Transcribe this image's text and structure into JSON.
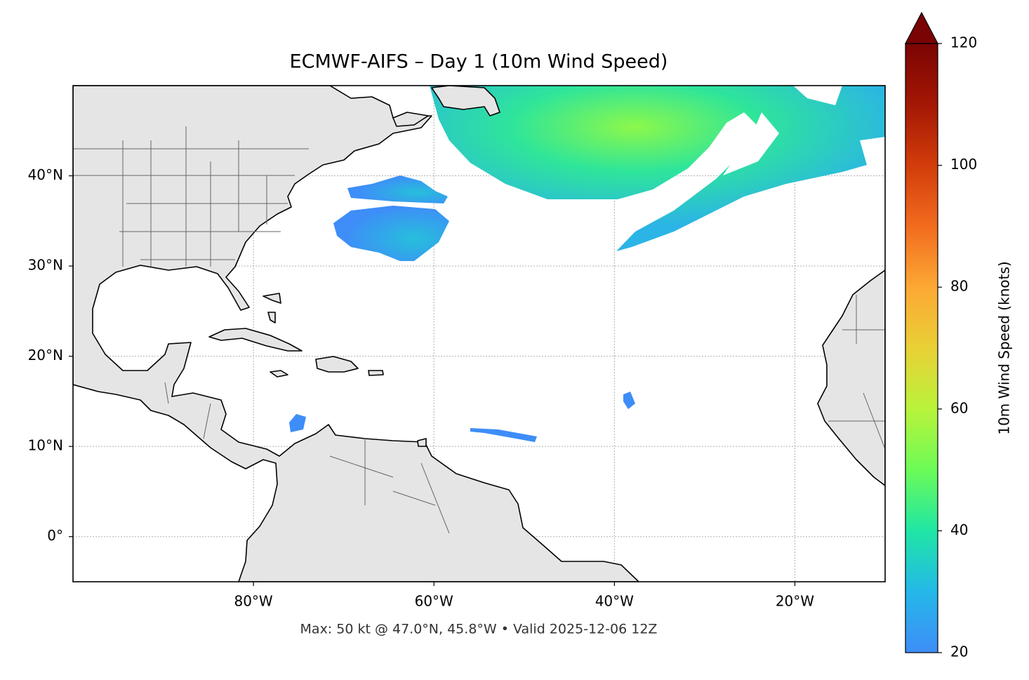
{
  "title": "ECMWF-AIFS – Day 1 (10m Wind Speed)",
  "footer": "Max: 50 kt @ 47.0°N, 45.8°W • Valid 2025-12-06 12Z",
  "map": {
    "xlim": [
      -100,
      -10
    ],
    "ylim": [
      -5,
      50
    ],
    "xticks": [
      {
        "value": -80,
        "label": "80°W"
      },
      {
        "value": -60,
        "label": "60°W"
      },
      {
        "value": -40,
        "label": "40°W"
      },
      {
        "value": -20,
        "label": "20°W"
      }
    ],
    "yticks": [
      {
        "value": 0,
        "label": "0°"
      },
      {
        "value": 10,
        "label": "10°N"
      },
      {
        "value": 20,
        "label": "20°N"
      },
      {
        "value": 30,
        "label": "30°N"
      },
      {
        "value": 40,
        "label": "40°N"
      }
    ],
    "grid": true
  },
  "colorbar": {
    "label": "10m Wind Speed (knots)",
    "lim": [
      20,
      120
    ],
    "ticks": [
      20,
      40,
      60,
      80,
      100,
      120
    ]
  }
}
